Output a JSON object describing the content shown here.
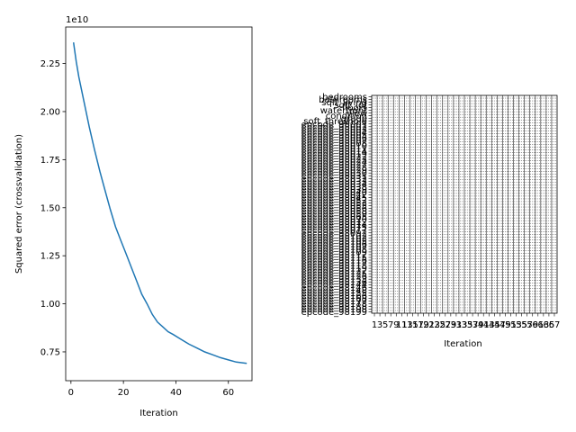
{
  "chart_data": [
    {
      "type": "line",
      "title": "",
      "xlabel": "Iteration",
      "ylabel": "Squared error (crossvalidation)",
      "y_offset_label": "1e10",
      "y_multiplier": 10000000000,
      "xlim": [
        -2,
        69
      ],
      "ylim": [
        0.6,
        2.44
      ],
      "xticks": [
        0,
        20,
        40,
        60
      ],
      "yticks": [
        0.75,
        1.0,
        1.25,
        1.5,
        1.75,
        2.0,
        2.25
      ],
      "ytick_labels": [
        "0.75",
        "1.00",
        "1.25",
        "1.50",
        "1.75",
        "2.00",
        "2.25"
      ],
      "grid": false,
      "series": [
        {
          "color": "#1f77b4",
          "x": [
            1,
            2,
            3,
            5,
            7,
            9,
            11,
            13,
            15,
            17,
            19,
            21,
            23,
            25,
            27,
            29,
            31,
            33,
            35,
            37,
            39,
            42,
            45,
            48,
            51,
            54,
            57,
            60,
            63,
            67
          ],
          "y": [
            2.36,
            2.26,
            2.18,
            2.05,
            1.92,
            1.8,
            1.69,
            1.59,
            1.49,
            1.4,
            1.33,
            1.26,
            1.19,
            1.12,
            1.05,
            1.0,
            0.945,
            0.905,
            0.88,
            0.855,
            0.84,
            0.815,
            0.79,
            0.77,
            0.75,
            0.735,
            0.72,
            0.708,
            0.697,
            0.69
          ]
        }
      ]
    },
    {
      "type": "heatmap",
      "title": "",
      "xlabel": "Iteration",
      "ylabel": "",
      "note_visible_text": "densely overlapping tick labels",
      "xtick_labels": [
        "1",
        "3",
        "5",
        "7",
        "9",
        "11",
        "13",
        "15",
        "17",
        "19",
        "21",
        "23",
        "25",
        "27",
        "29",
        "31",
        "33",
        "35",
        "37",
        "39",
        "41",
        "43",
        "45",
        "47",
        "49",
        "51",
        "53",
        "55",
        "57",
        "59",
        "61",
        "63",
        "65",
        "67"
      ],
      "ytick_labels": [
        "bedrooms",
        "bathrooms",
        "sqft_living",
        "sqft_lot",
        "floors",
        "waterfront",
        "view",
        "condition",
        "grade",
        "soft_threshold",
        "epcode_98001",
        "epcode_98002",
        "epcode_98003",
        "epcode_98004",
        "epcode_98005",
        "epcode_98006",
        "epcode_98007",
        "epcode_98008",
        "epcode_98010",
        "epcode_98011",
        "epcode_98014",
        "epcode_98019",
        "epcode_98022",
        "epcode_98023",
        "epcode_98024",
        "epcode_98027",
        "epcode_98028",
        "epcode_98029",
        "epcode_98030",
        "epcode_98031",
        "epcode_98032",
        "epcode_98033",
        "epcode_98034",
        "epcode_98038",
        "epcode_98039",
        "epcode_98040",
        "epcode_98042",
        "epcode_98045",
        "epcode_98052",
        "epcode_98053",
        "epcode_98055",
        "epcode_98056",
        "epcode_98058",
        "epcode_98059",
        "epcode_98065",
        "epcode_98070",
        "epcode_98072",
        "epcode_98074",
        "epcode_98075",
        "epcode_98077",
        "epcode_98092",
        "epcode_98102",
        "epcode_98103",
        "epcode_98105",
        "epcode_98106",
        "epcode_98107",
        "epcode_98108",
        "epcode_98109",
        "epcode_98112",
        "epcode_98115",
        "epcode_98116",
        "epcode_98117",
        "epcode_98118",
        "epcode_98119",
        "epcode_98122",
        "epcode_98125",
        "epcode_98126",
        "epcode_98133",
        "epcode_98136",
        "epcode_98144",
        "epcode_98146",
        "epcode_98148",
        "epcode_98155",
        "epcode_98166",
        "epcode_98168",
        "epcode_98177",
        "epcode_98178",
        "epcode_98188",
        "epcode_98198",
        "epcode_98199"
      ]
    }
  ]
}
